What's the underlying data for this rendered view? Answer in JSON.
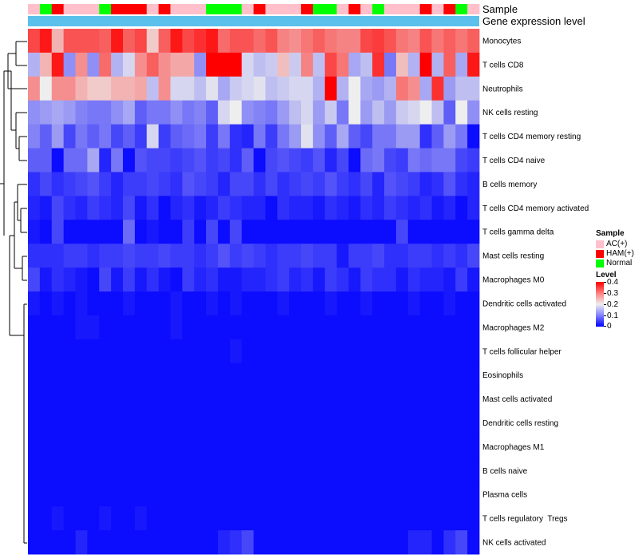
{
  "chart_data": {
    "type": "heatmap",
    "annotation_titles": [
      "Sample",
      "Gene expression level"
    ],
    "rows": [
      "Monocytes",
      "T cells CD8",
      "Neutrophils",
      "NK cells resting",
      "T cells CD4 memory resting",
      "T cells CD4 naive",
      "B cells memory",
      "T cells CD4 memory activated",
      "T cells gamma delta",
      "Mast cells resting",
      "Macrophages M0",
      "Dendritic cells activated",
      "Macrophages M2",
      "T cells follicular helper",
      "Eosinophils",
      "Mast cells activated",
      "Dendritic cells resting",
      "Macrophages M1",
      "B cells naive",
      "Plasma cells",
      "T cells regulatory  Tregs",
      "NK cells activated"
    ],
    "sample_groups": [
      "AC(+)",
      "HAM(+)",
      "Normal"
    ],
    "sample_annotation": [
      0,
      2,
      1,
      0,
      0,
      0,
      2,
      1,
      1,
      1,
      0,
      1,
      0,
      0,
      0,
      2,
      2,
      2,
      0,
      1,
      0,
      0,
      0,
      1,
      2,
      2,
      0,
      1,
      0,
      2,
      0,
      0,
      0,
      1,
      0,
      1,
      2,
      0
    ],
    "value_range": [
      0,
      0.4
    ],
    "legend_sample_title": "Sample",
    "legend_level_title": "Level",
    "legend_ticks": [
      "0.4",
      "0.3",
      "0.2",
      "0.1",
      "0"
    ],
    "values": [
      [
        0.34,
        0.38,
        0.25,
        0.33,
        0.33,
        0.33,
        0.32,
        0.38,
        0.32,
        0.34,
        0.23,
        0.32,
        0.38,
        0.34,
        0.36,
        0.38,
        0.31,
        0.33,
        0.33,
        0.31,
        0.33,
        0.29,
        0.28,
        0.3,
        0.32,
        0.3,
        0.29,
        0.29,
        0.34,
        0.35,
        0.33,
        0.3,
        0.29,
        0.33,
        0.3,
        0.32,
        0.3,
        0.32
      ],
      [
        0.15,
        0.25,
        0.38,
        0.12,
        0.28,
        0.12,
        0.31,
        0.15,
        0.18,
        0.28,
        0.32,
        0.28,
        0.26,
        0.26,
        0.12,
        0.4,
        0.4,
        0.4,
        0.18,
        0.16,
        0.17,
        0.24,
        0.17,
        0.29,
        0.16,
        0.34,
        0.3,
        0.14,
        0.16,
        0.36,
        0.1,
        0.24,
        0.15,
        0.4,
        0.15,
        0.32,
        0.14,
        0.38
      ],
      [
        0.28,
        0.2,
        0.28,
        0.28,
        0.25,
        0.23,
        0.23,
        0.25,
        0.25,
        0.26,
        0.16,
        0.28,
        0.18,
        0.18,
        0.16,
        0.19,
        0.14,
        0.17,
        0.18,
        0.19,
        0.16,
        0.17,
        0.18,
        0.18,
        0.15,
        0.4,
        0.15,
        0.2,
        0.14,
        0.13,
        0.15,
        0.3,
        0.28,
        0.14,
        0.36,
        0.13,
        0.16,
        0.16
      ],
      [
        0.12,
        0.13,
        0.14,
        0.13,
        0.11,
        0.1,
        0.1,
        0.12,
        0.14,
        0.08,
        0.1,
        0.1,
        0.12,
        0.1,
        0.11,
        0.08,
        0.18,
        0.2,
        0.12,
        0.11,
        0.1,
        0.13,
        0.16,
        0.18,
        0.13,
        0.17,
        0.1,
        0.2,
        0.13,
        0.16,
        0.13,
        0.17,
        0.18,
        0.2,
        0.16,
        0.08,
        0.2,
        0.12
      ],
      [
        0.11,
        0.08,
        0.13,
        0.06,
        0.1,
        0.08,
        0.1,
        0.06,
        0.08,
        0.05,
        0.18,
        0.05,
        0.08,
        0.09,
        0.1,
        0.05,
        0.1,
        0.04,
        0.03,
        0.1,
        0.05,
        0.1,
        0.13,
        0.19,
        0.12,
        0.08,
        0.14,
        0.08,
        0.06,
        0.1,
        0.1,
        0.13,
        0.13,
        0.04,
        0.08,
        0.13,
        0.1,
        0.01
      ],
      [
        0.08,
        0.08,
        0.01,
        0.09,
        0.09,
        0.14,
        0.03,
        0.1,
        0.01,
        0.07,
        0.06,
        0.06,
        0.05,
        0.06,
        0.07,
        0.05,
        0.06,
        0.04,
        0.08,
        0.01,
        0.06,
        0.07,
        0.06,
        0.05,
        0.07,
        0.03,
        0.06,
        0.01,
        0.09,
        0.1,
        0.06,
        0.05,
        0.1,
        0.09,
        0.1,
        0.1,
        0.06,
        0.05
      ],
      [
        0.04,
        0.06,
        0.04,
        0.05,
        0.06,
        0.07,
        0.05,
        0.03,
        0.05,
        0.05,
        0.06,
        0.05,
        0.04,
        0.07,
        0.06,
        0.05,
        0.03,
        0.06,
        0.06,
        0.04,
        0.06,
        0.04,
        0.05,
        0.06,
        0.05,
        0.07,
        0.05,
        0.04,
        0.06,
        0.03,
        0.07,
        0.06,
        0.05,
        0.03,
        0.04,
        0.07,
        0.04,
        0.03
      ],
      [
        0.03,
        0.02,
        0.06,
        0.04,
        0.03,
        0.05,
        0.04,
        0.03,
        0.06,
        0.02,
        0.04,
        0.01,
        0.03,
        0.04,
        0.02,
        0.03,
        0.05,
        0.04,
        0.03,
        0.03,
        0.01,
        0.04,
        0.03,
        0.03,
        0.02,
        0.04,
        0.03,
        0.02,
        0.04,
        0.03,
        0.05,
        0.04,
        0.03,
        0.04,
        0.02,
        0.03,
        0.01,
        0.03
      ],
      [
        0.02,
        0.01,
        0.06,
        0.01,
        0.01,
        0.01,
        0.01,
        0.01,
        0.09,
        0.01,
        0.02,
        0.01,
        0.01,
        0.05,
        0.01,
        0.06,
        0.01,
        0.06,
        0.01,
        0.01,
        0.01,
        0.01,
        0.01,
        0.01,
        0.01,
        0.01,
        0.01,
        0.01,
        0.01,
        0.01,
        0.01,
        0.06,
        0.01,
        0.01,
        0.01,
        0.01,
        0.01,
        0.01
      ],
      [
        0.04,
        0.04,
        0.04,
        0.05,
        0.05,
        0.04,
        0.05,
        0.05,
        0.06,
        0.05,
        0.05,
        0.06,
        0.05,
        0.05,
        0.04,
        0.05,
        0.07,
        0.05,
        0.06,
        0.05,
        0.04,
        0.05,
        0.05,
        0.06,
        0.05,
        0.05,
        0.02,
        0.05,
        0.05,
        0.06,
        0.04,
        0.04,
        0.05,
        0.05,
        0.04,
        0.05,
        0.04,
        0.06
      ],
      [
        0.06,
        0.02,
        0.04,
        0.03,
        0.02,
        0.01,
        0.06,
        0.02,
        0.05,
        0.02,
        0.04,
        0.02,
        0.01,
        0.05,
        0.03,
        0.04,
        0.02,
        0.02,
        0.03,
        0.03,
        0.04,
        0.05,
        0.03,
        0.04,
        0.02,
        0.05,
        0.04,
        0.02,
        0.05,
        0.04,
        0.04,
        0.02,
        0.04,
        0.03,
        0.03,
        0.02,
        0.05,
        0.02
      ],
      [
        0.02,
        0.01,
        0.02,
        0.01,
        0.02,
        0.01,
        0.01,
        0.01,
        0.02,
        0.01,
        0.01,
        0.01,
        0.02,
        0.01,
        0.01,
        0.02,
        0.01,
        0.02,
        0.01,
        0.01,
        0.01,
        0.02,
        0.01,
        0.01,
        0.01,
        0.02,
        0.01,
        0.01,
        0.02,
        0.01,
        0.01,
        0.01,
        0.02,
        0.01,
        0.01,
        0.02,
        0.01,
        0.01
      ],
      [
        0.01,
        0.01,
        0.01,
        0.01,
        0.02,
        0.02,
        0.01,
        0.01,
        0.01,
        0.01,
        0.01,
        0.01,
        0.02,
        0.01,
        0.01,
        0.01,
        0.01,
        0.01,
        0.01,
        0.01,
        0.01,
        0.01,
        0.01,
        0.01,
        0.01,
        0.01,
        0.01,
        0.01,
        0.01,
        0.01,
        0.01,
        0.01,
        0.01,
        0.01,
        0.01,
        0.01,
        0.01,
        0.01
      ],
      [
        0.01,
        0.01,
        0.01,
        0.01,
        0.01,
        0.01,
        0.01,
        0.01,
        0.01,
        0.01,
        0.01,
        0.01,
        0.01,
        0.01,
        0.01,
        0.01,
        0.01,
        0.02,
        0.01,
        0.01,
        0.01,
        0.01,
        0.01,
        0.01,
        0.01,
        0.01,
        0.01,
        0.01,
        0.01,
        0.01,
        0.01,
        0.01,
        0.01,
        0.01,
        0.01,
        0.01,
        0.01,
        0.01
      ],
      [
        0.01,
        0.01,
        0.01,
        0.01,
        0.01,
        0.01,
        0.01,
        0.01,
        0.01,
        0.01,
        0.01,
        0.01,
        0.01,
        0.01,
        0.01,
        0.01,
        0.01,
        0.01,
        0.01,
        0.01,
        0.01,
        0.01,
        0.01,
        0.01,
        0.01,
        0.01,
        0.01,
        0.01,
        0.01,
        0.01,
        0.01,
        0.01,
        0.01,
        0.01,
        0.01,
        0.01,
        0.01,
        0.01
      ],
      [
        0.01,
        0.01,
        0.01,
        0.01,
        0.01,
        0.01,
        0.01,
        0.01,
        0.01,
        0.01,
        0.01,
        0.01,
        0.01,
        0.01,
        0.01,
        0.01,
        0.01,
        0.01,
        0.01,
        0.01,
        0.01,
        0.01,
        0.01,
        0.01,
        0.01,
        0.01,
        0.01,
        0.01,
        0.01,
        0.01,
        0.01,
        0.01,
        0.01,
        0.01,
        0.01,
        0.01,
        0.01,
        0.01
      ],
      [
        0.01,
        0.01,
        0.01,
        0.01,
        0.01,
        0.01,
        0.01,
        0.01,
        0.01,
        0.01,
        0.01,
        0.01,
        0.01,
        0.01,
        0.01,
        0.01,
        0.01,
        0.01,
        0.01,
        0.01,
        0.01,
        0.01,
        0.01,
        0.01,
        0.01,
        0.01,
        0.01,
        0.01,
        0.01,
        0.01,
        0.01,
        0.01,
        0.01,
        0.01,
        0.01,
        0.01,
        0.01,
        0.01
      ],
      [
        0.01,
        0.01,
        0.01,
        0.01,
        0.01,
        0.01,
        0.01,
        0.01,
        0.01,
        0.01,
        0.01,
        0.01,
        0.01,
        0.01,
        0.01,
        0.01,
        0.01,
        0.01,
        0.01,
        0.01,
        0.01,
        0.01,
        0.01,
        0.01,
        0.01,
        0.01,
        0.01,
        0.01,
        0.01,
        0.01,
        0.01,
        0.01,
        0.01,
        0.01,
        0.01,
        0.01,
        0.01,
        0.01
      ],
      [
        0.01,
        0.01,
        0.01,
        0.01,
        0.01,
        0.01,
        0.01,
        0.01,
        0.01,
        0.01,
        0.01,
        0.01,
        0.01,
        0.01,
        0.01,
        0.01,
        0.01,
        0.01,
        0.01,
        0.01,
        0.01,
        0.01,
        0.01,
        0.01,
        0.01,
        0.01,
        0.01,
        0.01,
        0.01,
        0.01,
        0.01,
        0.01,
        0.01,
        0.01,
        0.01,
        0.01,
        0.01,
        0.01
      ],
      [
        0.01,
        0.01,
        0.01,
        0.01,
        0.01,
        0.01,
        0.01,
        0.01,
        0.01,
        0.01,
        0.01,
        0.01,
        0.01,
        0.01,
        0.01,
        0.01,
        0.01,
        0.01,
        0.01,
        0.01,
        0.01,
        0.01,
        0.01,
        0.01,
        0.01,
        0.01,
        0.01,
        0.01,
        0.01,
        0.01,
        0.01,
        0.01,
        0.01,
        0.01,
        0.01,
        0.01,
        0.01,
        0.01
      ],
      [
        0.01,
        0.01,
        0.02,
        0.01,
        0.01,
        0.01,
        0.02,
        0.01,
        0.01,
        0.02,
        0.01,
        0.01,
        0.01,
        0.01,
        0.01,
        0.01,
        0.01,
        0.01,
        0.01,
        0.01,
        0.01,
        0.01,
        0.01,
        0.01,
        0.01,
        0.01,
        0.01,
        0.01,
        0.01,
        0.01,
        0.01,
        0.01,
        0.01,
        0.01,
        0.01,
        0.01,
        0.01,
        0.01
      ],
      [
        0.01,
        0.01,
        0.01,
        0.01,
        0.03,
        0.01,
        0.01,
        0.01,
        0.01,
        0.01,
        0.01,
        0.01,
        0.01,
        0.01,
        0.01,
        0.01,
        0.03,
        0.04,
        0.06,
        0.01,
        0.01,
        0.01,
        0.01,
        0.01,
        0.01,
        0.01,
        0.01,
        0.01,
        0.01,
        0.01,
        0.01,
        0.01,
        0.03,
        0.03,
        0.01,
        0.04,
        0.06,
        0.01
      ]
    ]
  }
}
